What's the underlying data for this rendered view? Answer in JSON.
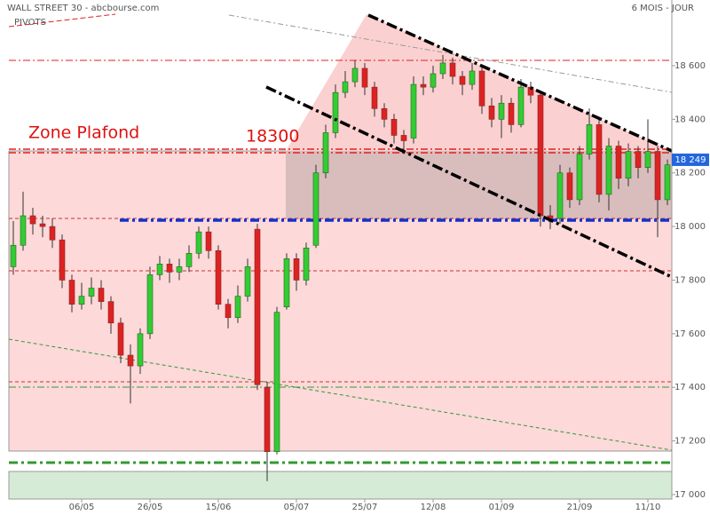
{
  "chart_data": {
    "type": "candlestick",
    "title": "WALL STREET 30 - abcbourse.com",
    "subtitle": "6 MOIS - JOUR",
    "annotations": [
      "PIVOTS",
      "Zone Plafond",
      "18300"
    ],
    "last_price": {
      "value": 18249,
      "label": "18 249"
    },
    "up_color": "#33cc33",
    "down_color": "#dd2222",
    "categories": [
      null,
      null,
      null,
      null,
      null,
      null,
      null,
      "06/05",
      null,
      null,
      null,
      null,
      null,
      null,
      "26/05",
      null,
      null,
      null,
      null,
      null,
      null,
      "15/06",
      null,
      null,
      null,
      null,
      null,
      null,
      null,
      "05/07",
      null,
      null,
      null,
      null,
      null,
      null,
      "25/07",
      null,
      null,
      null,
      null,
      null,
      null,
      "12/08",
      null,
      null,
      null,
      null,
      null,
      null,
      "01/09",
      null,
      null,
      null,
      null,
      null,
      null,
      null,
      "21/09",
      null,
      null,
      null,
      null,
      null,
      null,
      "11/10",
      null,
      null
    ],
    "open": [
      17850,
      17930,
      18040,
      18010,
      18000,
      17950,
      17800,
      17710,
      17740,
      17770,
      17720,
      17640,
      17520,
      17480,
      17600,
      17820,
      17860,
      17830,
      17850,
      17900,
      17980,
      17910,
      17710,
      17660,
      17740,
      17990,
      17400,
      17160,
      17700,
      17880,
      17800,
      17930,
      18200,
      18350,
      18500,
      18540,
      18590,
      18520,
      18440,
      18400,
      18340,
      18330,
      18530,
      18520,
      18570,
      18610,
      18560,
      18530,
      18580,
      18450,
      18400,
      18460,
      18380,
      18520,
      18490,
      18040,
      18030,
      18200,
      18100,
      18270,
      18380,
      18120,
      18300,
      18180,
      18280,
      18220,
      18280,
      18100
    ],
    "high": [
      18020,
      18130,
      18070,
      18040,
      18030,
      17970,
      17820,
      17790,
      17810,
      17800,
      17740,
      17660,
      17560,
      17620,
      17850,
      17890,
      17880,
      17880,
      17930,
      18000,
      18000,
      17930,
      17730,
      17780,
      17880,
      18010,
      17420,
      17700,
      17900,
      17900,
      17940,
      18230,
      18380,
      18530,
      18580,
      18620,
      18610,
      18540,
      18460,
      18420,
      18360,
      18560,
      18560,
      18600,
      18640,
      18630,
      18580,
      18610,
      18600,
      18480,
      18490,
      18480,
      18550,
      18540,
      18500,
      18080,
      18230,
      18220,
      18300,
      18440,
      18400,
      18330,
      18320,
      18310,
      18300,
      18400,
      18300,
      18250
    ],
    "low": [
      17820,
      17910,
      17970,
      17960,
      17920,
      17770,
      17680,
      17690,
      17710,
      17690,
      17600,
      17490,
      17340,
      17450,
      17580,
      17800,
      17790,
      17800,
      17830,
      17880,
      17880,
      17690,
      17620,
      17640,
      17720,
      17390,
      17050,
      17150,
      17690,
      17760,
      17780,
      17920,
      18180,
      18330,
      18480,
      18520,
      18490,
      18410,
      18370,
      18310,
      18270,
      18310,
      18490,
      18500,
      18550,
      18530,
      18490,
      18510,
      18420,
      18370,
      18330,
      18350,
      18370,
      18460,
      18000,
      17990,
      18010,
      18070,
      18080,
      18250,
      18090,
      18060,
      18140,
      18150,
      18180,
      18200,
      17960,
      18080
    ],
    "close": [
      17930,
      18040,
      18010,
      18000,
      17950,
      17800,
      17710,
      17740,
      17770,
      17720,
      17640,
      17520,
      17480,
      17600,
      17820,
      17860,
      17830,
      17850,
      17900,
      17980,
      17910,
      17710,
      17660,
      17740,
      17850,
      17410,
      17160,
      17680,
      17880,
      17800,
      17920,
      18200,
      18350,
      18500,
      18540,
      18590,
      18520,
      18440,
      18400,
      18340,
      18320,
      18530,
      18520,
      18570,
      18610,
      18560,
      18530,
      18580,
      18450,
      18400,
      18460,
      18380,
      18520,
      18490,
      18040,
      18030,
      18200,
      18100,
      18270,
      18380,
      18120,
      18300,
      18180,
      18280,
      18220,
      18280,
      18100,
      18230
    ],
    "ylim": [
      16990,
      18845
    ],
    "yticks": [
      {
        "value": 17000,
        "label": "17 000"
      },
      {
        "value": 17200,
        "label": "17 200"
      },
      {
        "value": 17400,
        "label": "17 400"
      },
      {
        "value": 17600,
        "label": "17 600"
      },
      {
        "value": 17800,
        "label": "17 800"
      },
      {
        "value": 18000,
        "label": "18 000"
      },
      {
        "value": 18200,
        "label": "18 200"
      },
      {
        "value": 18400,
        "label": "18 400"
      },
      {
        "value": 18600,
        "label": "18 600"
      }
    ]
  }
}
